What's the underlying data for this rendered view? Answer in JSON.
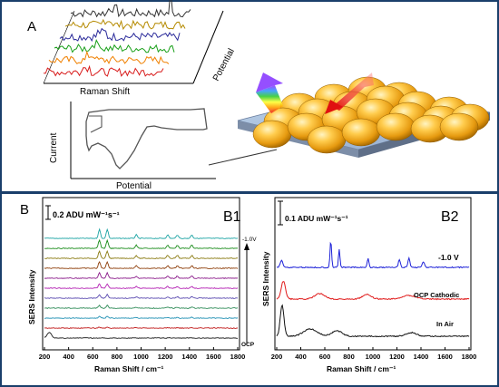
{
  "panel_a": {
    "label": "A",
    "waterfall_xlabel": "Raman Shift",
    "waterfall_zlabel": "Potential",
    "cv_ylabel": "Current",
    "cv_xlabel": "Potential",
    "trace_colors": [
      "#333333",
      "#b58a00",
      "#2a2a9a",
      "#19a019",
      "#f08000",
      "#d81b1b"
    ]
  },
  "panel_b1": {
    "label": "B",
    "sublabel": "B1",
    "scale_text": "0.2 ADU mW⁻¹s⁻¹",
    "ylabel": "SERS Intensity",
    "xlabel": "Raman Shift / cm⁻¹",
    "xticks": [
      "200",
      "400",
      "600",
      "800",
      "1000",
      "1200",
      "1400",
      "1600",
      "1800"
    ],
    "arrow_top": "-1.0V",
    "arrow_bottom": "OCP",
    "trace_colors": [
      "#1aa3a3",
      "#1a8c1a",
      "#8a7a10",
      "#8e3e0a",
      "#8a1a8a",
      "#b320b3",
      "#5a4ab0",
      "#2e8b57",
      "#1e8fb3",
      "#c01818",
      "#1a1a1a"
    ]
  },
  "panel_b2": {
    "sublabel": "B2",
    "scale_text": "0.1 ADU mW⁻¹s⁻¹",
    "ylabel": "SERS Intensity",
    "xlabel": "Raman Shift / cm⁻¹",
    "xticks": [
      "200",
      "400",
      "600",
      "800",
      "1000",
      "1200",
      "1400",
      "1600",
      "1800"
    ],
    "traces": [
      {
        "label": "-1.0 V",
        "color": "#1e22d8"
      },
      {
        "label": "OCP Cathodic",
        "color": "#e01a1a"
      },
      {
        "label": "In Air",
        "color": "#111111"
      }
    ]
  }
}
